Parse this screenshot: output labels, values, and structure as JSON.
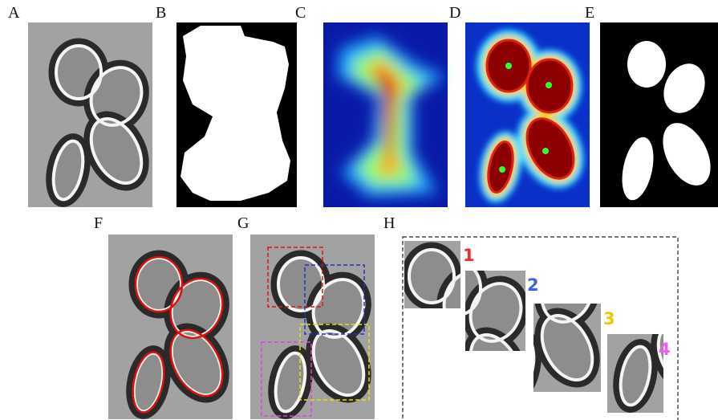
{
  "panels": [
    {
      "label": "A"
    },
    {
      "label": "B"
    },
    {
      "label": "C"
    },
    {
      "label": "D"
    },
    {
      "label": "E"
    },
    {
      "label": "F"
    },
    {
      "label": "G"
    },
    {
      "label": "H"
    }
  ],
  "crops": [
    {
      "label": "1",
      "color": "#f0302a"
    },
    {
      "label": "2",
      "color": "#3a62e8"
    },
    {
      "label": "3",
      "color": "#f5c400"
    },
    {
      "label": "4",
      "color": "#f060e8"
    }
  ]
}
